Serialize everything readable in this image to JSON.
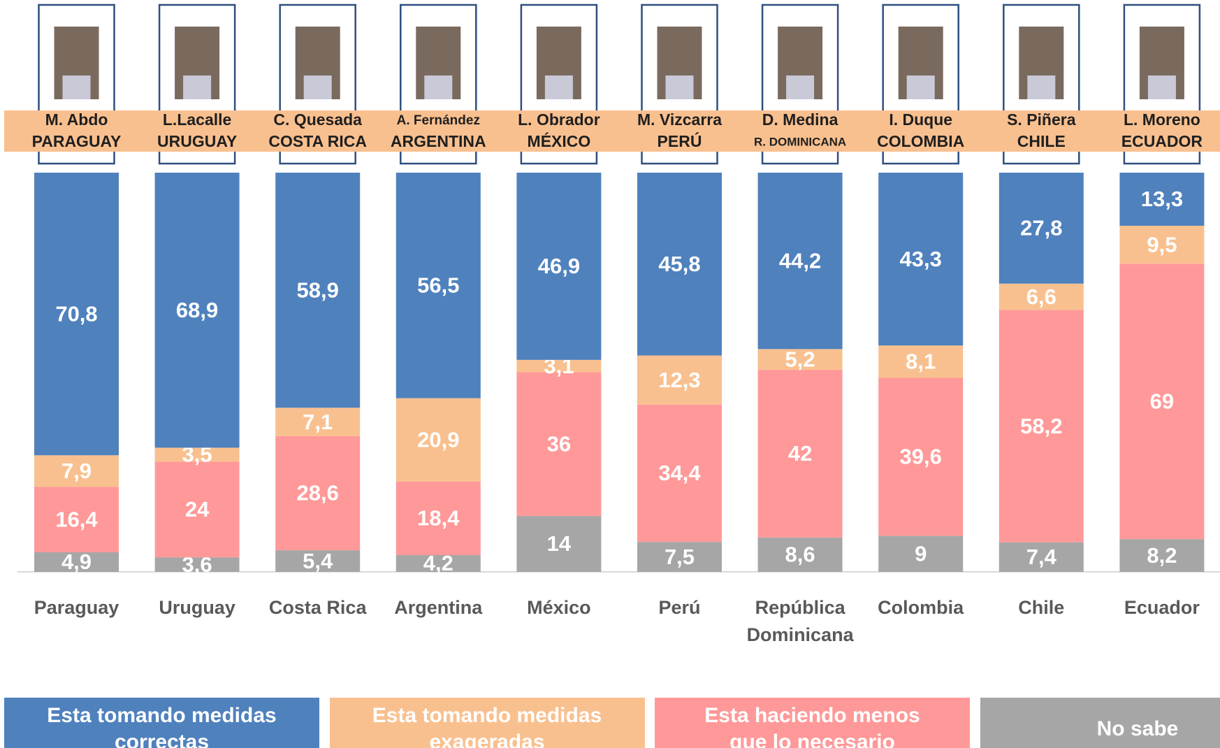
{
  "chart_data": {
    "type": "stacked_bar",
    "categories": [
      "Paraguay",
      "Uruguay",
      "Costa Rica",
      "Argentina",
      "México",
      "Perú",
      "República Dominicana",
      "Colombia",
      "Chile",
      "Ecuador"
    ],
    "leaders": [
      {
        "name": "M. Abdo",
        "country": "PARAGUAY"
      },
      {
        "name": "L.Lacalle",
        "country": "URUGUAY"
      },
      {
        "name": "C. Quesada",
        "country": "COSTA RICA"
      },
      {
        "name": "A. Fernández",
        "country": "ARGENTINA"
      },
      {
        "name": "L. Obrador",
        "country": "MÉXICO"
      },
      {
        "name": "M. Vizcarra",
        "country": "PERÚ"
      },
      {
        "name": "D. Medina",
        "country": "R. DOMINICANA"
      },
      {
        "name": "I. Duque",
        "country": "COLOMBIA"
      },
      {
        "name": "S. Piñera",
        "country": "CHILE"
      },
      {
        "name": "L. Moreno",
        "country": "ECUADOR"
      }
    ],
    "series": [
      {
        "name": "Esta tomando medidas correctas",
        "color": "#4f81bd",
        "values": [
          70.8,
          68.9,
          58.9,
          56.5,
          46.9,
          45.8,
          44.2,
          43.3,
          27.8,
          13.3
        ],
        "value_labels": [
          "70,8",
          "68,9",
          "58,9",
          "56,5",
          "46,9",
          "45,8",
          "44,2",
          "43,3",
          "27,8",
          "13,3"
        ]
      },
      {
        "name": "Esta tomando medidas exageradas",
        "color": "#f9c08f",
        "values": [
          7.9,
          3.5,
          7.1,
          20.9,
          3.1,
          12.3,
          5.2,
          8.1,
          6.6,
          9.5
        ],
        "value_labels": [
          "7,9",
          "3,5",
          "7,1",
          "20,9",
          "3,1",
          "12,3",
          "5,2",
          "8,1",
          "6,6",
          "9,5"
        ]
      },
      {
        "name": "Esta haciendo menos que lo necesario",
        "color": "#ff9999",
        "values": [
          16.4,
          24,
          28.6,
          18.4,
          36,
          34.4,
          42,
          39.6,
          58.2,
          69
        ],
        "value_labels": [
          "16,4",
          "24",
          "28,6",
          "18,4",
          "36",
          "34,4",
          "42",
          "39,6",
          "58,2",
          "69"
        ]
      },
      {
        "name": "No sabe",
        "color": "#a6a6a6",
        "values": [
          4.9,
          3.6,
          5.4,
          4.2,
          14,
          7.5,
          8.6,
          9,
          7.4,
          8.2
        ],
        "value_labels": [
          "4,9",
          "3,6",
          "5,4",
          "4,2",
          "14",
          "7,5",
          "8,6",
          "9",
          "7,4",
          "8,2"
        ]
      }
    ],
    "ylim": [
      0,
      100
    ]
  }
}
